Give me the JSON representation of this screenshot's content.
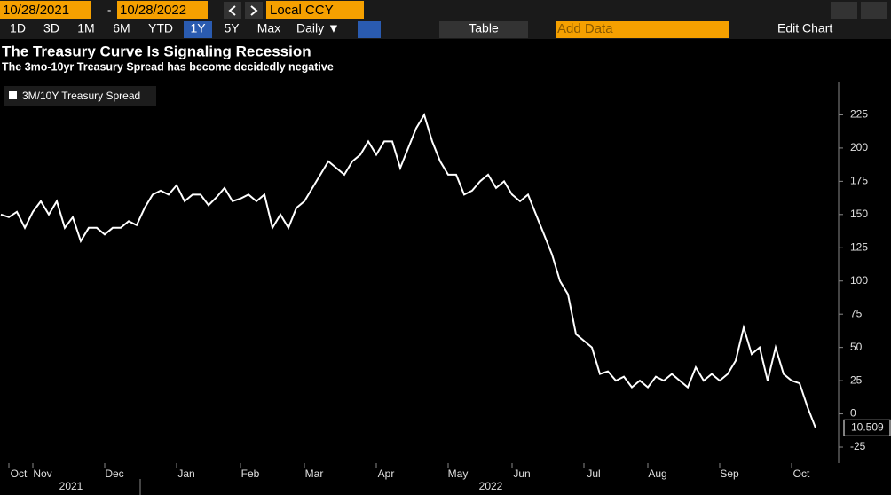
{
  "toolbar": {
    "start_date": "10/28/2021",
    "separator": "-",
    "end_date": "10/28/2022",
    "currency": "Local CCY",
    "periods": [
      "1D",
      "3D",
      "1M",
      "6M",
      "YTD",
      "1Y",
      "5Y",
      "Max"
    ],
    "frequency": "Daily ▼",
    "table": "Table",
    "add_data": "Add Data",
    "edit_chart": "Edit Chart"
  },
  "chart_data": {
    "type": "line",
    "title": "The Treasury Curve Is Signaling Recession",
    "subtitle": "The 3mo-10yr Treasury Spread has become decidedly negative",
    "categories": [
      null,
      "Oct",
      null,
      null,
      "Nov",
      null,
      null,
      null,
      null,
      null,
      null,
      null,
      null,
      "Dec",
      null,
      null,
      null,
      null,
      null,
      null,
      null,
      null,
      "Jan",
      null,
      null,
      null,
      null,
      null,
      null,
      null,
      "Feb",
      null,
      null,
      null,
      null,
      null,
      null,
      null,
      "Mar",
      null,
      null,
      null,
      null,
      null,
      null,
      null,
      null,
      "Apr",
      null,
      null,
      null,
      null,
      null,
      null,
      null,
      null,
      "May",
      null,
      null,
      null,
      null,
      null,
      null,
      null,
      "Jun",
      null,
      null,
      null,
      null,
      null,
      null,
      null,
      null,
      "Jul",
      null,
      null,
      null,
      null,
      null,
      null,
      null,
      "Aug",
      null,
      null,
      null,
      null,
      null,
      null,
      null,
      null,
      "Sep",
      null,
      null,
      null,
      null,
      null,
      null,
      null,
      null,
      "Oct",
      null,
      null,
      null
    ],
    "years": [
      "2021",
      "2022"
    ],
    "series": [
      {
        "name": "3M/10Y Treasury Spread",
        "color": "#ffffff",
        "values": [
          150,
          148,
          152,
          140,
          152,
          160,
          150,
          160,
          140,
          148,
          130,
          140,
          140,
          135,
          140,
          140,
          145,
          142,
          155,
          165,
          168,
          165,
          172,
          160,
          165,
          165,
          157,
          163,
          170,
          160,
          162,
          165,
          160,
          165,
          140,
          150,
          140,
          155,
          160,
          170,
          180,
          190,
          185,
          180,
          190,
          195,
          205,
          195,
          205,
          205,
          185,
          200,
          215,
          225,
          205,
          190,
          180,
          180,
          165,
          168,
          175,
          180,
          170,
          175,
          165,
          160,
          165,
          150,
          135,
          120,
          100,
          90,
          60,
          55,
          50,
          30,
          32,
          25,
          28,
          20,
          25,
          20,
          28,
          25,
          30,
          25,
          20,
          35,
          25,
          30,
          25,
          30,
          40,
          65,
          45,
          50,
          25,
          50,
          30,
          25,
          23,
          5,
          -10.509
        ]
      }
    ],
    "ylim": [
      -37,
      250
    ],
    "yticks": [
      -25,
      0,
      25,
      50,
      75,
      100,
      125,
      150,
      175,
      200,
      225
    ]
  }
}
